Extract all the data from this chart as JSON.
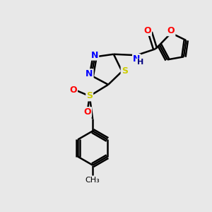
{
  "bg_color": "#e8e8e8",
  "bond_color": "#000000",
  "bond_width": 1.8,
  "atom_colors": {
    "S": "#cccc00",
    "N": "#0000ff",
    "O": "#ff0000",
    "H": "#000080",
    "S_thiadiazol": "#cccc00",
    "S_sulfonyl": "#cccc00"
  },
  "font_size": 9,
  "figsize": [
    3.0,
    3.0
  ],
  "dpi": 100
}
